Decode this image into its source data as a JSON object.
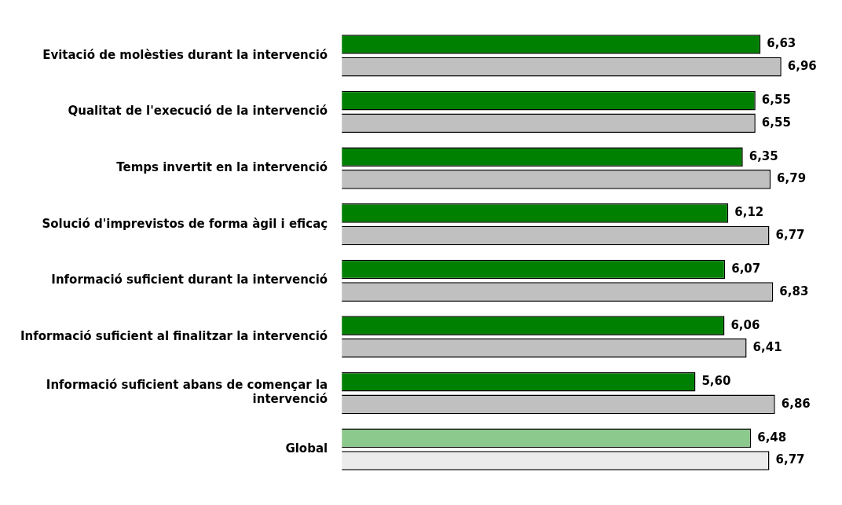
{
  "chart_data": {
    "type": "bar",
    "orientation": "horizontal",
    "legend": false,
    "categories": [
      "Evitació de molèsties durant la intervenció",
      "Qualitat de l'execució de la intervenció",
      "Temps invertit en la intervenció",
      "Solució d'imprevistos de forma àgil i eficaç",
      "Informació suficient durant la intervenció",
      "Informació suficient al finalitzar la intervenció",
      "Informació suficient abans de començar la intervenció",
      "Global"
    ],
    "series": [
      {
        "colors": [
          "#008000",
          "#008000",
          "#008000",
          "#008000",
          "#008000",
          "#008000",
          "#008000",
          "#8cc98c"
        ],
        "values": [
          6.63,
          6.55,
          6.35,
          6.12,
          6.07,
          6.06,
          5.6,
          6.48
        ],
        "value_labels": [
          "6,63",
          "6,55",
          "6,35",
          "6,12",
          "6,07",
          "6,06",
          "5,60",
          "6,48"
        ]
      },
      {
        "colors": [
          "#c0c0c0",
          "#c0c0c0",
          "#c0c0c0",
          "#c0c0c0",
          "#c0c0c0",
          "#c0c0c0",
          "#c0c0c0",
          "#ebebeb"
        ],
        "values": [
          6.96,
          6.55,
          6.79,
          6.77,
          6.83,
          6.41,
          6.86,
          6.77
        ],
        "value_labels": [
          "6,96",
          "6,55",
          "6,79",
          "6,77",
          "6,83",
          "6,41",
          "6,86",
          "6,77"
        ]
      }
    ]
  }
}
